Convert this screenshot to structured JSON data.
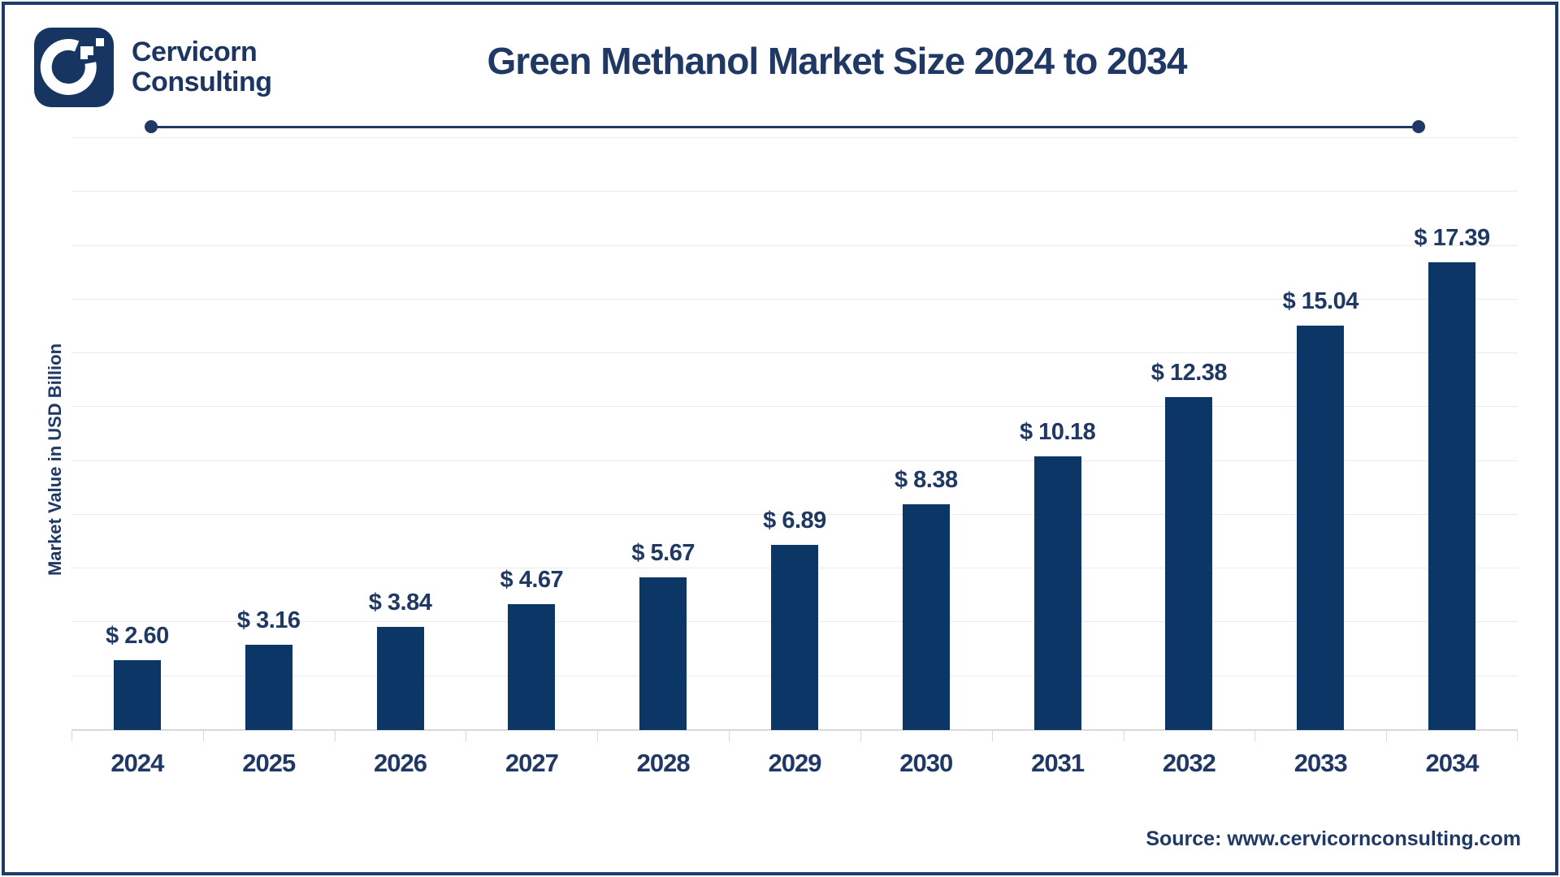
{
  "brand": {
    "line1": "Cervicorn",
    "line2": "Consulting"
  },
  "header": {
    "title": "Green Methanol Market Size 2024 to 2034"
  },
  "source": {
    "text": "Source: www.cervicornconsulting.com"
  },
  "colors": {
    "text_navy": "#1f3864",
    "bar_navy": "#0c3665",
    "logo_navy": "#173561",
    "frame_border": "#1d3c68",
    "gridline": "#ebebeb",
    "axis": "#d9d9d9"
  },
  "chart_data": {
    "type": "bar",
    "title": "Green Methanol Market Size 2024 to 2034",
    "categories": [
      "2024",
      "2025",
      "2026",
      "2027",
      "2028",
      "2029",
      "2030",
      "2031",
      "2032",
      "2033",
      "2034"
    ],
    "values": [
      2.6,
      3.16,
      3.84,
      4.67,
      5.67,
      6.89,
      8.38,
      10.18,
      12.38,
      15.04,
      17.39
    ],
    "value_labels": [
      "$ 2.60",
      "$ 3.16",
      "$ 3.84",
      "$ 4.67",
      "$ 5.67",
      "$ 6.89",
      "$ 8.38",
      "$ 10.18",
      "$ 12.38",
      "$ 15.04",
      "$ 17.39"
    ],
    "xlabel": "",
    "ylabel": "Market Value in USD Billion",
    "ylim": [
      0,
      22
    ],
    "gridline_step": 2,
    "grid": "on",
    "legend": "none",
    "y_tick_labels_visible": false
  }
}
